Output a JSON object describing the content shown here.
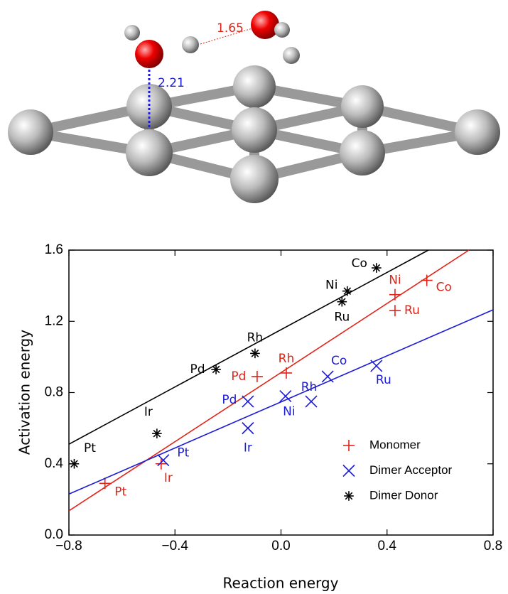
{
  "molecule_labels": [
    1.65,
    2.21
  ],
  "chart_data": {
    "type": "scatter",
    "x_label": "Reaction energy",
    "y_label": "Activation energy",
    "xlim": [
      -0.8,
      0.8
    ],
    "xticks": [
      {
        "value": -0.8,
        "label": "−0.8"
      },
      {
        "value": -0.4,
        "label": "−0.4"
      },
      {
        "value": 0,
        "label": "0.0"
      },
      0.4,
      0.8
    ],
    "ylim": [
      0,
      1.6
    ],
    "yticks": [
      {
        "value": 0,
        "label": "0.0"
      },
      0.4,
      0.8,
      1.2,
      1.6
    ],
    "legend": "lower right",
    "series": [
      {
        "name": "Monomer",
        "color": "#e02418",
        "marker": "plus",
        "x": [
          -0.664,
          -0.452,
          -0.09,
          0.02,
          0.43,
          0.43,
          0.55
        ],
        "values": [
          0.29,
          0.4,
          0.89,
          0.91,
          1.35,
          1.26,
          1.43
        ],
        "labels": [
          "Pt",
          "Ir",
          "Pd",
          "Rh",
          "Ni",
          "Ru",
          "Co"
        ],
        "fit": {
          "x": [
            -0.8,
            0.709
          ],
          "y": [
            0.136,
            1.6
          ]
        }
      },
      {
        "name": "Dimer Acceptor",
        "color": "#1c1cd6",
        "marker": "x",
        "x": [
          -0.444,
          -0.125,
          -0.125,
          0.017,
          0.114,
          0.176,
          0.36
        ],
        "values": [
          0.42,
          0.6,
          0.75,
          0.78,
          0.75,
          0.89,
          0.95
        ],
        "labels": [
          "Pt",
          "Ir",
          "Pd",
          "Ni",
          "Rh",
          "Co",
          "Ru"
        ],
        "fit": {
          "x": [
            -0.8,
            0.8
          ],
          "y": [
            0.23,
            1.265
          ]
        }
      },
      {
        "name": "Dimer Donor",
        "color": "#000000",
        "marker": "star",
        "x": [
          -0.78,
          -0.468,
          -0.245,
          -0.098,
          0.23,
          0.25,
          0.36
        ],
        "values": [
          0.4,
          0.57,
          0.93,
          1.02,
          1.31,
          1.37,
          1.5
        ],
        "labels": [
          "Pt",
          "Ir",
          "Pd",
          "Rh",
          "Ru",
          "Ni",
          "Co"
        ],
        "fit": {
          "x": [
            -0.8,
            0.556
          ],
          "y": [
            0.51,
            1.6
          ]
        }
      }
    ]
  }
}
